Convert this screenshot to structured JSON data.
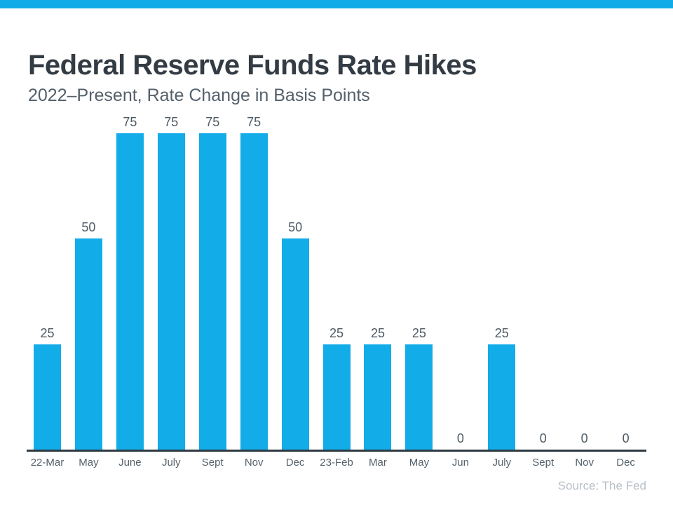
{
  "colors": {
    "accent_bar": "#12ace9",
    "bar_fill": "#12ace9",
    "title_text": "#333b44",
    "subtitle_text": "#54606b",
    "value_label_text": "#4e5a64",
    "axis_line": "#2e3a42",
    "axis_label_text": "#55616b",
    "source_text": "#b7bfc7"
  },
  "header": {
    "title": "Federal Reserve Funds Rate Hikes",
    "subtitle": "2022–Present, Rate Change in Basis Points"
  },
  "chart_data": {
    "type": "bar",
    "title": "Federal Reserve Funds Rate Hikes",
    "subtitle": "2022–Present, Rate Change in Basis Points",
    "categories": [
      "22-Mar",
      "May",
      "June",
      "July",
      "Sept",
      "Nov",
      "Dec",
      "23-Feb",
      "Mar",
      "May",
      "Jun",
      "July",
      "Sept",
      "Nov",
      "Dec"
    ],
    "values": [
      25,
      50,
      75,
      75,
      75,
      75,
      50,
      25,
      25,
      25,
      0,
      25,
      0,
      0,
      0
    ],
    "xlabel": "",
    "ylabel": "",
    "ylim": [
      0,
      80
    ],
    "grid": false,
    "legend": false,
    "data_labels": true,
    "bar_color": "#12ace9"
  },
  "footer": {
    "source": "Source: The Fed"
  }
}
